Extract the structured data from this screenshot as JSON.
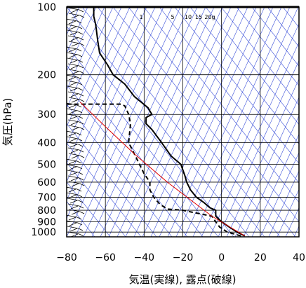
{
  "chart_data": {
    "type": "line",
    "title": "",
    "xlabel": "気温(実線), 露点(破線)",
    "ylabel": "気圧(hPa)",
    "xlim": [
      -80,
      40
    ],
    "ylim": [
      1050,
      100
    ],
    "y_scale": "log",
    "grid": true,
    "x_ticks": [
      -80,
      -60,
      -40,
      -20,
      0,
      20,
      40
    ],
    "y_ticks": [
      100,
      200,
      300,
      400,
      500,
      600,
      700,
      800,
      900,
      1000
    ],
    "mixing_ratio_labels": [
      "1",
      "5",
      "10",
      "15",
      "20g"
    ],
    "colors": {
      "temperature": "#000000",
      "dewpoint": "#000000",
      "parcel": "#e00000",
      "background_lines": "#3a4fd9",
      "grid": "#000000",
      "wind_barbs": "#000000"
    },
    "series": [
      {
        "key": "temperature",
        "style": "solid",
        "points": [
          [
            12,
            1040
          ],
          [
            8,
            1000
          ],
          [
            4,
            950
          ],
          [
            0,
            900
          ],
          [
            -3,
            850
          ],
          [
            -3,
            800
          ],
          [
            -6,
            780
          ],
          [
            -9,
            740
          ],
          [
            -13,
            700
          ],
          [
            -16,
            650
          ],
          [
            -18,
            600
          ],
          [
            -19,
            560
          ],
          [
            -21,
            500
          ],
          [
            -26,
            460
          ],
          [
            -31,
            400
          ],
          [
            -36,
            350
          ],
          [
            -39,
            330
          ],
          [
            -39,
            310
          ],
          [
            -36,
            300
          ],
          [
            -38,
            280
          ],
          [
            -45,
            250
          ],
          [
            -50,
            220
          ],
          [
            -56,
            200
          ],
          [
            -59,
            180
          ],
          [
            -63,
            160
          ],
          [
            -64,
            140
          ],
          [
            -65,
            120
          ],
          [
            -66,
            110
          ],
          [
            -66,
            100
          ]
        ]
      },
      {
        "key": "dewpoint",
        "style": "dashed",
        "points": [
          [
            10,
            1040
          ],
          [
            3,
            1000
          ],
          [
            -1,
            950
          ],
          [
            -3,
            900
          ],
          [
            -5,
            850
          ],
          [
            -20,
            800
          ],
          [
            -28,
            790
          ],
          [
            -32,
            750
          ],
          [
            -35,
            700
          ],
          [
            -37,
            650
          ],
          [
            -37,
            600
          ],
          [
            -40,
            550
          ],
          [
            -45,
            450
          ],
          [
            -48,
            400
          ],
          [
            -47,
            330
          ],
          [
            -48,
            300
          ],
          [
            -50,
            275
          ],
          [
            -52,
            270
          ],
          [
            -80,
            270
          ]
        ]
      },
      {
        "key": "parcel",
        "style": "solid",
        "points": [
          [
            12,
            1040
          ],
          [
            -5,
            850
          ],
          [
            -28,
            600
          ],
          [
            -45,
            450
          ],
          [
            -60,
            340
          ],
          [
            -73,
            265
          ]
        ]
      }
    ]
  }
}
